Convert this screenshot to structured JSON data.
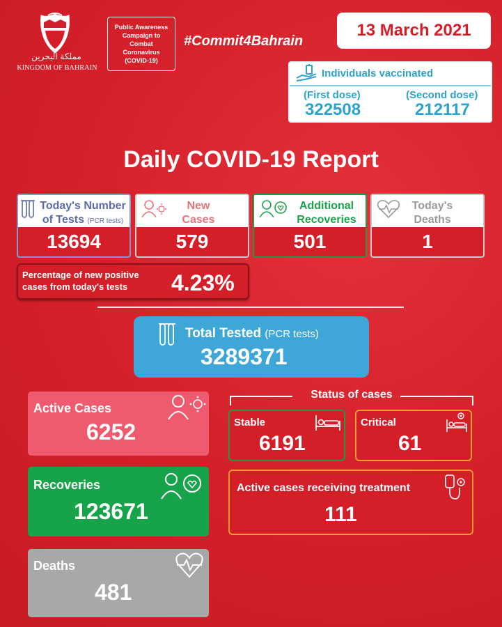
{
  "header": {
    "kingdom_ar": "مملكة البحرين",
    "kingdom_en": "KINGDOM OF BAHRAIN",
    "campaign": "Public Awareness Campaign to Combat Coronavirus (COVID-19)",
    "hashtag": "#Commit4Bahrain",
    "date": "13 March 2021"
  },
  "vaccination": {
    "title": "Individuals vaccinated",
    "first_dose_label": "(First dose)",
    "first_dose_value": "322508",
    "second_dose_label": "(Second dose)",
    "second_dose_value": "212117",
    "accent": "#2ba3cd"
  },
  "report_title": "Daily COVID-19 Report",
  "daily": {
    "tests": {
      "label_line1": "Today's Number",
      "label_line2": "of Tests",
      "sub": "(PCR tests)",
      "value": "13694",
      "color": "#5b6aa8"
    },
    "new_cases": {
      "label_line1": "New",
      "label_line2": "Cases",
      "value": "579",
      "color": "#e8747a"
    },
    "recoveries": {
      "label_line1": "Additional",
      "label_line2": "Recoveries",
      "value": "501",
      "color": "#1aa34a"
    },
    "deaths": {
      "label_line1": "Today's",
      "label_line2": "Deaths",
      "value": "1",
      "color": "#9a9a9a"
    }
  },
  "positivity": {
    "label_line1": "Percentage of new positive",
    "label_line2": "cases from today's tests",
    "value": "4.23%"
  },
  "total_tested": {
    "label": "Total Tested",
    "sub": "(PCR tests)",
    "value": "3289371",
    "color": "#3ea7d8"
  },
  "active_cases": {
    "label": "Active Cases",
    "value": "6252",
    "color": "#f05a6e"
  },
  "total_recoveries": {
    "label": "Recoveries",
    "value": "123671",
    "color": "#16a349"
  },
  "total_deaths": {
    "label": "Deaths",
    "value": "481",
    "color": "#a8a8a8"
  },
  "status": {
    "title": "Status of cases",
    "stable": {
      "label": "Stable",
      "value": "6191",
      "border": "#1e9a48"
    },
    "critical": {
      "label": "Critical",
      "value": "61",
      "border": "#f29b2c"
    },
    "treatment": {
      "label": "Active cases receiving treatment",
      "value": "111",
      "border": "#f29b2c"
    }
  }
}
